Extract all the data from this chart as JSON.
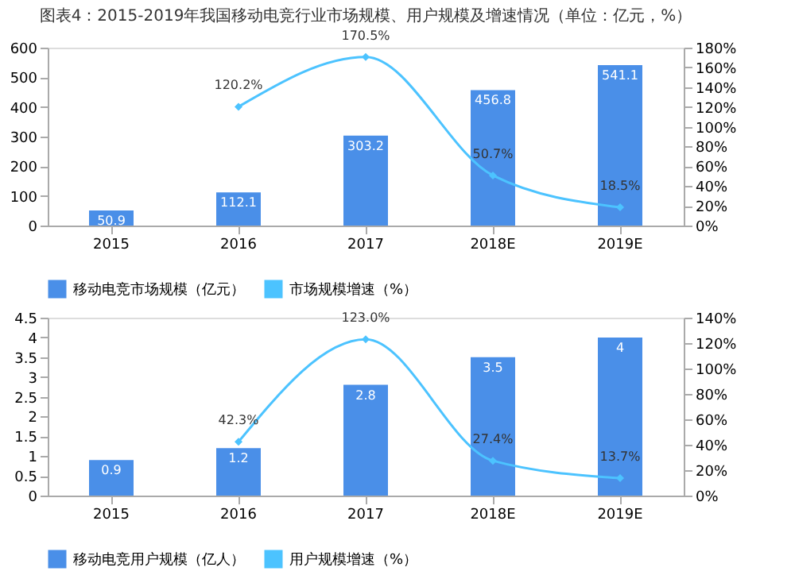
{
  "chart_data": [
    {
      "type": "bar",
      "title": "图表4：2015-2019年我国移动电竞行业市场规模、用户规模及增速情况（单位：亿元，%）",
      "categories": [
        "2015",
        "2016",
        "2017",
        "2018E",
        "2019E"
      ],
      "series": [
        {
          "name": "移动电竞市场规模（亿元）",
          "type": "bar",
          "color": "#4a8fe8",
          "values": [
            50.9,
            112.1,
            303.2,
            456.8,
            541.1
          ],
          "value_labels": [
            "50.9",
            "112.1",
            "303.2",
            "456.8",
            "541.1"
          ]
        },
        {
          "name": "市场规模增速（%）",
          "type": "line",
          "axis": "y2",
          "color": "#4cc3ff",
          "marker": "diamond",
          "values": [
            null,
            120.2,
            170.5,
            50.7,
            18.5
          ],
          "value_labels": [
            null,
            "120.2%",
            "170.5%",
            "50.7%",
            "18.5%"
          ]
        }
      ],
      "ylim": [
        0,
        600
      ],
      "yticks": [
        0,
        100,
        200,
        300,
        400,
        500,
        600
      ],
      "y2lim": [
        0,
        180
      ],
      "y2ticks": [
        {
          "value": 0,
          "label": "0%"
        },
        {
          "value": 20,
          "label": "20%"
        },
        {
          "value": 40,
          "label": "40%"
        },
        {
          "value": 60,
          "label": "60%"
        },
        {
          "value": 80,
          "label": "80%"
        },
        {
          "value": 100,
          "label": "100%"
        },
        {
          "value": 120,
          "label": "120%"
        },
        {
          "value": 140,
          "label": "140%"
        },
        {
          "value": 160,
          "label": "160%"
        },
        {
          "value": 180,
          "label": "180%"
        }
      ],
      "grid": false,
      "legend": "bottom"
    },
    {
      "type": "bar",
      "categories": [
        "2015",
        "2016",
        "2017",
        "2018E",
        "2019E"
      ],
      "series": [
        {
          "name": "移动电竞用户规模（亿人）",
          "type": "bar",
          "color": "#4a8fe8",
          "values": [
            0.9,
            1.2,
            2.8,
            3.5,
            4
          ],
          "value_labels": [
            "0.9",
            "1.2",
            "2.8",
            "3.5",
            "4"
          ]
        },
        {
          "name": "用户规模增速（%）",
          "type": "line",
          "axis": "y2",
          "color": "#4cc3ff",
          "marker": "diamond",
          "values": [
            null,
            42.3,
            123.0,
            27.4,
            13.7
          ],
          "value_labels": [
            null,
            "42.3%",
            "123.0%",
            "27.4%",
            "13.7%"
          ]
        }
      ],
      "ylim": [
        0,
        4.5
      ],
      "yticks": [
        0,
        0.5,
        1,
        1.5,
        2,
        2.5,
        3,
        3.5,
        4,
        4.5
      ],
      "y2lim": [
        0,
        140
      ],
      "y2ticks": [
        {
          "value": 0,
          "label": "0%"
        },
        {
          "value": 20,
          "label": "20%"
        },
        {
          "value": 40,
          "label": "40%"
        },
        {
          "value": 60,
          "label": "60%"
        },
        {
          "value": 80,
          "label": "80%"
        },
        {
          "value": 100,
          "label": "100%"
        },
        {
          "value": 120,
          "label": "120%"
        },
        {
          "value": 140,
          "label": "140%"
        }
      ],
      "grid": false,
      "legend": "bottom"
    }
  ]
}
